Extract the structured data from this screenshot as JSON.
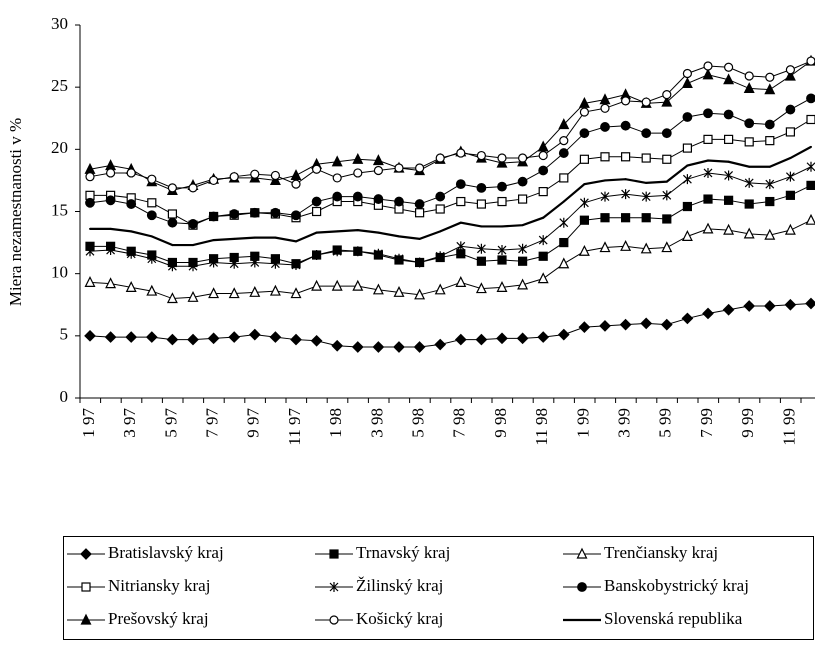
{
  "chart_data": {
    "type": "line",
    "y_label": "Miera nezamestnanosti v %",
    "categories": [
      "1 97",
      null,
      "3 97",
      null,
      "5 97",
      null,
      "7 97",
      null,
      "9 97",
      null,
      "11 97",
      null,
      "1 98",
      null,
      "3 98",
      null,
      "5 98",
      null,
      "7 98",
      null,
      "9 98",
      null,
      "11 98",
      null,
      "1 99",
      null,
      "3 99",
      null,
      "5 99",
      null,
      "7 99",
      null,
      "9 99",
      null,
      "11 99",
      null
    ],
    "ylim": [
      0,
      30
    ],
    "yticks": [
      0,
      5,
      10,
      15,
      20,
      25,
      30
    ],
    "series": [
      {
        "name": "Bratislavský kraj",
        "color": "#000000",
        "marker": "diamond",
        "values": [
          5.0,
          4.9,
          4.9,
          4.9,
          4.7,
          4.7,
          4.8,
          4.9,
          5.1,
          4.9,
          4.7,
          4.6,
          4.2,
          4.1,
          4.1,
          4.1,
          4.1,
          4.3,
          4.7,
          4.7,
          4.8,
          4.8,
          4.9,
          5.1,
          5.7,
          5.8,
          5.9,
          6.0,
          5.9,
          6.4,
          6.8,
          7.1,
          7.4,
          7.4,
          7.5,
          7.6
        ]
      },
      {
        "name": "Trnavský kraj",
        "color": "#000000",
        "marker": "square-filled",
        "values": [
          12.2,
          12.2,
          11.8,
          11.5,
          10.9,
          10.9,
          11.2,
          11.3,
          11.4,
          11.2,
          10.8,
          11.5,
          11.9,
          11.8,
          11.5,
          11.1,
          10.9,
          11.3,
          11.6,
          11.0,
          11.1,
          11.0,
          11.4,
          12.5,
          14.3,
          14.5,
          14.5,
          14.5,
          14.4,
          15.4,
          16.0,
          15.9,
          15.6,
          15.8,
          16.3,
          17.1
        ]
      },
      {
        "name": "Trenčiansky kraj",
        "color": "#000000",
        "marker": "triangle-open",
        "values": [
          9.3,
          9.2,
          8.9,
          8.6,
          8.0,
          8.1,
          8.4,
          8.4,
          8.5,
          8.6,
          8.4,
          9.0,
          9.0,
          9.0,
          8.7,
          8.5,
          8.3,
          8.7,
          9.3,
          8.8,
          8.9,
          9.1,
          9.6,
          10.8,
          11.8,
          12.1,
          12.2,
          12.0,
          12.1,
          13.0,
          13.6,
          13.5,
          13.2,
          13.1,
          13.5,
          14.3
        ]
      },
      {
        "name": "Nitriansky kraj",
        "color": "#000000",
        "marker": "square-open",
        "values": [
          16.3,
          16.3,
          16.1,
          15.7,
          14.8,
          13.9,
          14.6,
          14.7,
          14.9,
          14.8,
          14.5,
          15.0,
          15.8,
          15.8,
          15.5,
          15.2,
          14.9,
          15.2,
          15.8,
          15.6,
          15.8,
          16.0,
          16.6,
          17.7,
          19.2,
          19.4,
          19.4,
          19.3,
          19.2,
          20.1,
          20.8,
          20.8,
          20.6,
          20.7,
          21.4,
          22.4
        ]
      },
      {
        "name": "Žilinský kraj",
        "color": "#000000",
        "marker": "asterisk",
        "values": [
          11.8,
          11.9,
          11.6,
          11.2,
          10.6,
          10.6,
          10.9,
          10.8,
          10.9,
          10.8,
          10.7,
          11.5,
          11.8,
          11.8,
          11.6,
          11.2,
          10.9,
          11.4,
          12.2,
          12.0,
          11.9,
          12.0,
          12.7,
          14.1,
          15.7,
          16.2,
          16.4,
          16.2,
          16.3,
          17.6,
          18.1,
          17.9,
          17.3,
          17.2,
          17.8,
          18.6
        ]
      },
      {
        "name": "Banskobystrický kraj",
        "color": "#000000",
        "marker": "circle-filled",
        "values": [
          15.7,
          15.9,
          15.6,
          14.7,
          14.1,
          14.0,
          14.6,
          14.8,
          14.9,
          14.9,
          14.7,
          15.8,
          16.2,
          16.2,
          16.0,
          15.8,
          15.6,
          16.2,
          17.2,
          16.9,
          17.0,
          17.4,
          18.3,
          19.7,
          21.3,
          21.8,
          21.9,
          21.3,
          21.3,
          22.6,
          22.9,
          22.8,
          22.1,
          22.0,
          23.2,
          24.1
        ]
      },
      {
        "name": "Prešovský kraj",
        "color": "#000000",
        "marker": "triangle-filled",
        "values": [
          18.4,
          18.7,
          18.4,
          17.4,
          16.7,
          17.1,
          17.6,
          17.7,
          17.7,
          17.5,
          17.9,
          18.8,
          19.0,
          19.2,
          19.1,
          18.5,
          18.3,
          19.2,
          19.8,
          19.3,
          18.9,
          19.0,
          20.2,
          22.0,
          23.7,
          24.0,
          24.4,
          23.7,
          23.8,
          25.3,
          26.0,
          25.6,
          24.9,
          24.8,
          25.9,
          27.1
        ]
      },
      {
        "name": "Košický kraj",
        "color": "#000000",
        "marker": "circle-open",
        "values": [
          17.8,
          18.1,
          18.1,
          17.6,
          16.9,
          16.9,
          17.5,
          17.8,
          18.0,
          17.9,
          17.2,
          18.4,
          17.7,
          18.1,
          18.3,
          18.5,
          18.5,
          19.3,
          19.7,
          19.5,
          19.3,
          19.3,
          19.5,
          20.7,
          23.0,
          23.3,
          23.9,
          23.8,
          24.4,
          26.1,
          26.7,
          26.6,
          25.9,
          25.8,
          26.4,
          27.1
        ]
      },
      {
        "name": "Slovenská republika",
        "color": "#000000",
        "marker": "none",
        "width": 2.2,
        "values": [
          13.6,
          13.6,
          13.4,
          13.0,
          12.3,
          12.3,
          12.7,
          12.8,
          12.9,
          12.9,
          12.6,
          13.3,
          13.4,
          13.5,
          13.3,
          13.0,
          12.8,
          13.4,
          14.1,
          13.8,
          13.8,
          13.9,
          14.5,
          15.8,
          17.2,
          17.5,
          17.6,
          17.3,
          17.4,
          18.7,
          19.1,
          19.0,
          18.6,
          18.6,
          19.3,
          20.2
        ]
      }
    ]
  }
}
